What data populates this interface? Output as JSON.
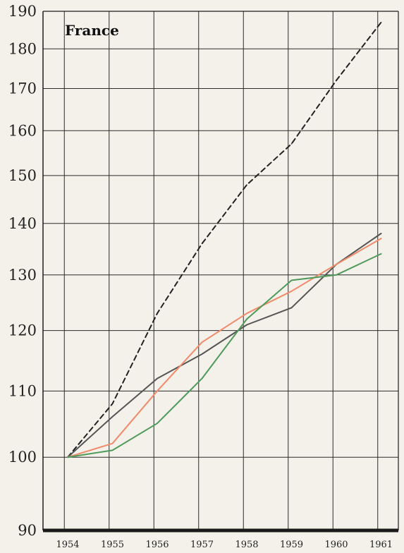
{
  "chart_data": {
    "type": "line",
    "title": "France",
    "xlabel": "",
    "ylabel": "",
    "x": [
      "1954",
      "1955",
      "1956",
      "1957",
      "1958",
      "1959",
      "1960",
      "1961"
    ],
    "y_scale": "log",
    "ylim": [
      90,
      190
    ],
    "yticks": [
      "90",
      "100",
      "110",
      "120",
      "130",
      "140",
      "150",
      "160",
      "170",
      "180",
      "190"
    ],
    "grid": true,
    "legend": "none",
    "series": [
      {
        "color": "#222222",
        "dash": "dashed",
        "values": [
          100,
          108,
          123,
          136,
          148,
          157,
          172,
          187
        ]
      },
      {
        "color": "#555555",
        "dash": "solid",
        "values": [
          100,
          106,
          112,
          116,
          121,
          124,
          132,
          138
        ]
      },
      {
        "color": "#f08a6a",
        "dash": "solid",
        "values": [
          100,
          102,
          110,
          118,
          123,
          127,
          132,
          137
        ]
      },
      {
        "color": "#4f9a5b",
        "dash": "solid",
        "values": [
          100,
          101,
          105,
          112,
          122,
          129,
          130,
          134
        ]
      }
    ]
  }
}
